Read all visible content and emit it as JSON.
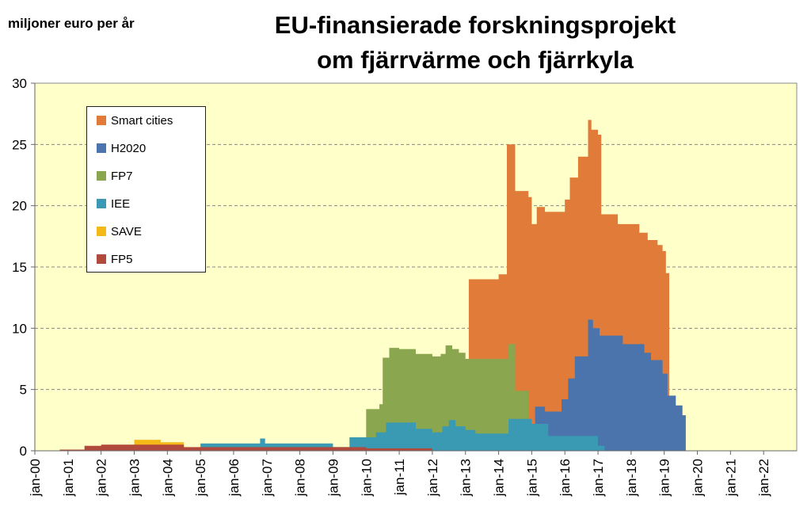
{
  "unit_label": "miljoner euro per år",
  "title_line1": "EU-finansierade  forskningsprojekt",
  "title_line2": "om fjärrvärme och fjärrkyla",
  "chart_data": {
    "type": "area",
    "title": "EU-finansierade forskningsprojekt om fjärrvärme och fjärrkyla",
    "ylabel": "miljoner euro per år",
    "ylim": [
      0,
      30
    ],
    "yticks": [
      0,
      5,
      10,
      15,
      20,
      25,
      30
    ],
    "xticks": [
      "jan-00",
      "jan-01",
      "jan-02",
      "jan-03",
      "jan-04",
      "jan-05",
      "jan-06",
      "jan-07",
      "jan-08",
      "jan-09",
      "jan-10",
      "jan-11",
      "jan-12",
      "jan-13",
      "jan-14",
      "jan-15",
      "jan-16",
      "jan-17",
      "jan-18",
      "jan-19",
      "jan-20",
      "jan-21",
      "jan-22"
    ],
    "xlim": [
      2000.0,
      2023.0
    ],
    "grid": true,
    "legend_position": "top-left",
    "stacked": true,
    "series": [
      {
        "name": "Smart cities",
        "color": "#e07b39",
        "points": [
          [
            2013.1,
            0
          ],
          [
            2013.1,
            14
          ],
          [
            2014.0,
            14
          ],
          [
            2014.0,
            14.4
          ],
          [
            2014.25,
            14.4
          ],
          [
            2014.25,
            25
          ],
          [
            2014.5,
            25
          ],
          [
            2014.5,
            21.2
          ],
          [
            2014.9,
            21.2
          ],
          [
            2014.9,
            20.7
          ],
          [
            2015.0,
            20.7
          ],
          [
            2015.0,
            18.5
          ],
          [
            2015.15,
            18.5
          ],
          [
            2015.15,
            19.9
          ],
          [
            2015.4,
            19.9
          ],
          [
            2015.4,
            19.5
          ],
          [
            2016.0,
            19.5
          ],
          [
            2016.0,
            20.5
          ],
          [
            2016.15,
            20.5
          ],
          [
            2016.15,
            22.3
          ],
          [
            2016.4,
            22.3
          ],
          [
            2016.4,
            24
          ],
          [
            2016.7,
            24
          ],
          [
            2016.7,
            27
          ],
          [
            2016.8,
            27
          ],
          [
            2016.8,
            26.2
          ],
          [
            2017.0,
            26.2
          ],
          [
            2017.0,
            25.8
          ],
          [
            2017.1,
            25.8
          ],
          [
            2017.1,
            19.3
          ],
          [
            2017.6,
            19.3
          ],
          [
            2017.6,
            18.5
          ],
          [
            2018.25,
            18.5
          ],
          [
            2018.25,
            17.8
          ],
          [
            2018.5,
            17.8
          ],
          [
            2018.5,
            17.2
          ],
          [
            2018.8,
            17.2
          ],
          [
            2018.8,
            16.8
          ],
          [
            2018.95,
            16.8
          ],
          [
            2018.95,
            16.3
          ],
          [
            2019.05,
            16.3
          ],
          [
            2019.05,
            14.5
          ],
          [
            2019.15,
            14.5
          ],
          [
            2019.15,
            0
          ]
        ]
      },
      {
        "name": "H2020",
        "color": "#4a74ab",
        "points": [
          [
            2015.1,
            0
          ],
          [
            2015.1,
            3.6
          ],
          [
            2015.4,
            3.6
          ],
          [
            2015.4,
            3.2
          ],
          [
            2015.9,
            3.2
          ],
          [
            2015.9,
            4.2
          ],
          [
            2016.1,
            4.2
          ],
          [
            2016.1,
            5.9
          ],
          [
            2016.3,
            5.9
          ],
          [
            2016.3,
            7.7
          ],
          [
            2016.7,
            7.7
          ],
          [
            2016.7,
            10.7
          ],
          [
            2016.85,
            10.7
          ],
          [
            2016.85,
            10
          ],
          [
            2017.05,
            10
          ],
          [
            2017.05,
            9.4
          ],
          [
            2017.75,
            9.4
          ],
          [
            2017.75,
            8.7
          ],
          [
            2018.4,
            8.7
          ],
          [
            2018.4,
            8
          ],
          [
            2018.6,
            8
          ],
          [
            2018.6,
            7.4
          ],
          [
            2018.95,
            7.4
          ],
          [
            2018.95,
            6.3
          ],
          [
            2019.1,
            6.3
          ],
          [
            2019.1,
            4.5
          ],
          [
            2019.35,
            4.5
          ],
          [
            2019.35,
            3.7
          ],
          [
            2019.55,
            3.7
          ],
          [
            2019.55,
            2.9
          ],
          [
            2019.65,
            2.9
          ],
          [
            2019.65,
            0
          ]
        ]
      },
      {
        "name": "FP7",
        "color": "#8aa64f",
        "points": [
          [
            2010.0,
            0
          ],
          [
            2010.0,
            3.4
          ],
          [
            2010.4,
            3.4
          ],
          [
            2010.4,
            3.8
          ],
          [
            2010.5,
            3.8
          ],
          [
            2010.5,
            7.6
          ],
          [
            2010.7,
            7.6
          ],
          [
            2010.7,
            8.4
          ],
          [
            2011.0,
            8.4
          ],
          [
            2011.0,
            8.3
          ],
          [
            2011.5,
            8.3
          ],
          [
            2011.5,
            7.9
          ],
          [
            2012.0,
            7.9
          ],
          [
            2012.0,
            7.7
          ],
          [
            2012.25,
            7.7
          ],
          [
            2012.25,
            7.9
          ],
          [
            2012.4,
            7.9
          ],
          [
            2012.4,
            8.6
          ],
          [
            2012.6,
            8.6
          ],
          [
            2012.6,
            8.3
          ],
          [
            2012.8,
            8.3
          ],
          [
            2012.8,
            8
          ],
          [
            2013.0,
            8
          ],
          [
            2013.0,
            7.5
          ],
          [
            2014.3,
            7.5
          ],
          [
            2014.3,
            8.7
          ],
          [
            2014.5,
            8.7
          ],
          [
            2014.5,
            4.9
          ],
          [
            2014.9,
            4.9
          ],
          [
            2014.9,
            0
          ]
        ]
      },
      {
        "name": "IEE",
        "color": "#3a9ab4",
        "points": [
          [
            2005.0,
            0
          ],
          [
            2005.0,
            0.6
          ],
          [
            2006.8,
            0.6
          ],
          [
            2006.8,
            1.0
          ],
          [
            2006.95,
            1.0
          ],
          [
            2006.95,
            0.6
          ],
          [
            2009.0,
            0.6
          ],
          [
            2009.0,
            0.3
          ],
          [
            2009.5,
            0.3
          ],
          [
            2009.5,
            1.1
          ],
          [
            2010.3,
            1.1
          ],
          [
            2010.3,
            1.5
          ],
          [
            2010.6,
            1.5
          ],
          [
            2010.6,
            2.3
          ],
          [
            2011.5,
            2.3
          ],
          [
            2011.5,
            1.8
          ],
          [
            2012.0,
            1.8
          ],
          [
            2012.0,
            1.5
          ],
          [
            2012.3,
            1.5
          ],
          [
            2012.3,
            2.0
          ],
          [
            2012.5,
            2.0
          ],
          [
            2012.5,
            2.5
          ],
          [
            2012.7,
            2.5
          ],
          [
            2012.7,
            2.0
          ],
          [
            2013.0,
            2.0
          ],
          [
            2013.0,
            1.7
          ],
          [
            2013.3,
            1.7
          ],
          [
            2013.3,
            1.4
          ],
          [
            2014.3,
            1.4
          ],
          [
            2014.3,
            2.6
          ],
          [
            2015.0,
            2.6
          ],
          [
            2015.0,
            2.2
          ],
          [
            2015.5,
            2.2
          ],
          [
            2015.5,
            1.2
          ],
          [
            2017.0,
            1.2
          ],
          [
            2017.0,
            0.4
          ],
          [
            2017.2,
            0.4
          ],
          [
            2017.2,
            0
          ]
        ]
      },
      {
        "name": "SAVE",
        "color": "#f4b919",
        "points": [
          [
            2003.0,
            0
          ],
          [
            2003.0,
            0.9
          ],
          [
            2003.8,
            0.9
          ],
          [
            2003.8,
            0.7
          ],
          [
            2004.5,
            0.7
          ],
          [
            2004.5,
            0
          ]
        ]
      },
      {
        "name": "FP5",
        "color": "#b14a3d",
        "points": [
          [
            2000.75,
            0
          ],
          [
            2000.75,
            0.1
          ],
          [
            2001.5,
            0.1
          ],
          [
            2001.5,
            0.4
          ],
          [
            2002.0,
            0.4
          ],
          [
            2002.0,
            0.5
          ],
          [
            2004.5,
            0.5
          ],
          [
            2004.5,
            0.3
          ],
          [
            2010.0,
            0.3
          ],
          [
            2010.0,
            0.2
          ],
          [
            2012.0,
            0.2
          ],
          [
            2012.0,
            0
          ]
        ]
      }
    ]
  }
}
